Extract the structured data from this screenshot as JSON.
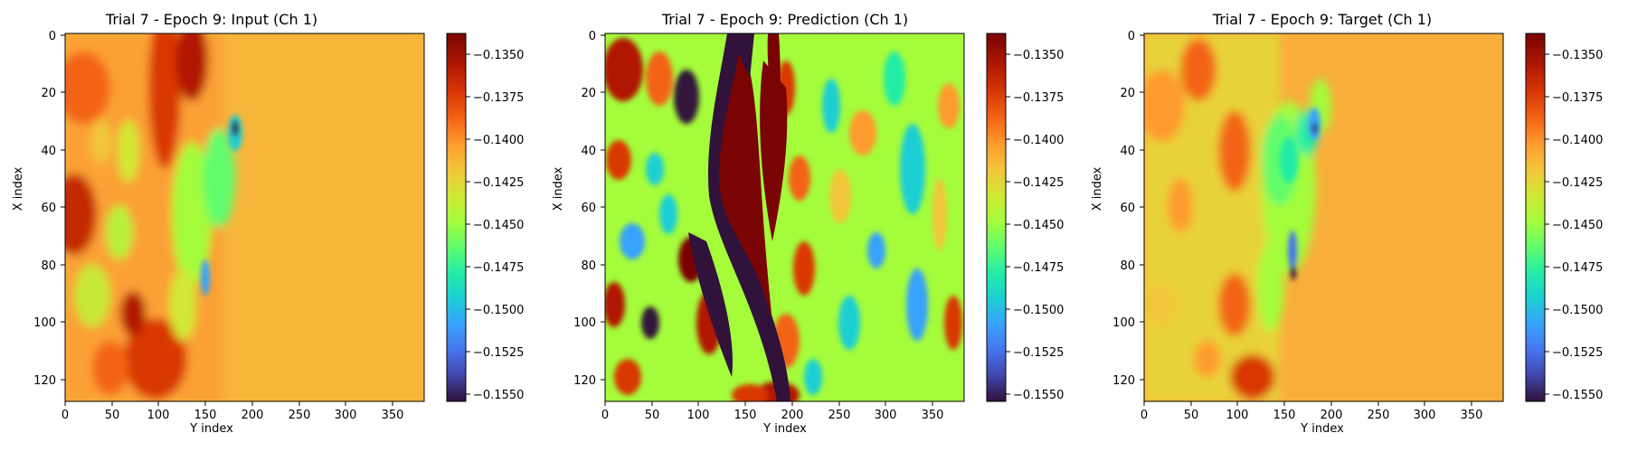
{
  "chart_data": [
    {
      "type": "heatmap",
      "title": "Trial 7 - Epoch 9: Input (Ch 1)",
      "xlabel": "Y index",
      "ylabel": "X index",
      "xlim": [
        0,
        383
      ],
      "ylim": [
        127,
        0
      ],
      "xticks": [
        "0",
        "50",
        "100",
        "150",
        "200",
        "250",
        "300",
        "350"
      ],
      "yticks": [
        "0",
        "20",
        "40",
        "60",
        "80",
        "100",
        "120"
      ],
      "colorbar": {
        "vmin": -0.1555,
        "vmax": -0.134,
        "colormap": "turbo",
        "ticks": [
          "−0.1350",
          "−0.1375",
          "−0.1400",
          "−0.1425",
          "−0.1450",
          "−0.1475",
          "−0.1500",
          "−0.1525",
          "−0.1550"
        ]
      }
    },
    {
      "type": "heatmap",
      "title": "Trial 7 - Epoch 9: Prediction (Ch 1)",
      "xlabel": "Y index",
      "ylabel": "X index",
      "xlim": [
        0,
        383
      ],
      "ylim": [
        127,
        0
      ],
      "xticks": [
        "0",
        "50",
        "100",
        "150",
        "200",
        "250",
        "300",
        "350"
      ],
      "yticks": [
        "0",
        "20",
        "40",
        "60",
        "80",
        "100",
        "120"
      ],
      "colorbar": {
        "vmin": -0.1555,
        "vmax": -0.134,
        "colormap": "turbo",
        "ticks": [
          "−0.1350",
          "−0.1375",
          "−0.1400",
          "−0.1425",
          "−0.1450",
          "−0.1475",
          "−0.1500",
          "−0.1525",
          "−0.1550"
        ]
      }
    },
    {
      "type": "heatmap",
      "title": "Trial 7 - Epoch 9: Target (Ch 1)",
      "xlabel": "Y index",
      "ylabel": "X index",
      "xlim": [
        0,
        383
      ],
      "ylim": [
        127,
        0
      ],
      "xticks": [
        "0",
        "50",
        "100",
        "150",
        "200",
        "250",
        "300",
        "350"
      ],
      "yticks": [
        "0",
        "20",
        "40",
        "60",
        "80",
        "100",
        "120"
      ],
      "colorbar": {
        "vmin": -0.1555,
        "vmax": -0.134,
        "colormap": "turbo",
        "ticks": [
          "−0.1350",
          "−0.1375",
          "−0.1400",
          "−0.1425",
          "−0.1450",
          "−0.1475",
          "−0.1500",
          "−0.1525",
          "−0.1550"
        ]
      }
    }
  ]
}
